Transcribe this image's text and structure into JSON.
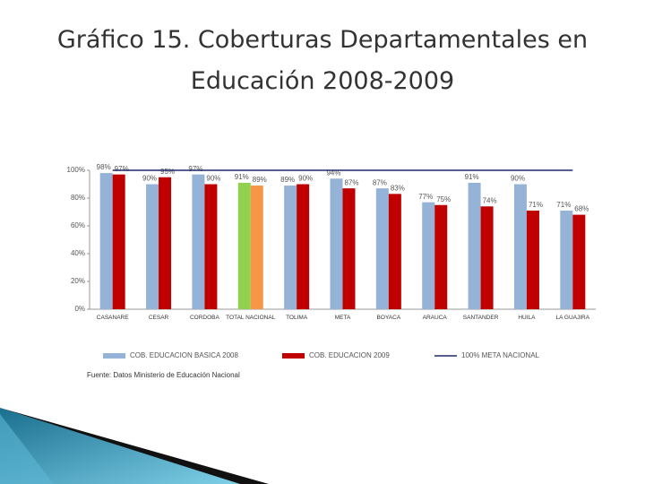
{
  "chart_data": {
    "type": "bar",
    "title": "Gráfico 15. Coberturas Departamentales en Educación 2008-2009",
    "categories": [
      "CASANARE",
      "CESAR",
      "CORDOBA",
      "TOTAL NACIONAL",
      "TOLIMA",
      "META",
      "BOYACA",
      "ARAUCA",
      "SANTANDER",
      "HUILA",
      "LA GUAJIRA"
    ],
    "series": [
      {
        "name": "COB. EDUCACION BASICA 2008",
        "color": "#95b3d7",
        "colors": [
          "#95b3d7",
          "#95b3d7",
          "#95b3d7",
          "#92d050",
          "#95b3d7",
          "#95b3d7",
          "#95b3d7",
          "#95b3d7",
          "#95b3d7",
          "#95b3d7",
          "#95b3d7"
        ],
        "values": [
          98,
          90,
          97,
          91,
          89,
          94,
          87,
          77,
          91,
          90,
          71
        ],
        "value_labels": [
          "98%",
          "90%",
          "97%",
          "91%",
          "89%",
          "94%",
          "87%",
          "77%",
          "91%",
          "90%",
          "71%"
        ]
      },
      {
        "name": "COB. EDUCACION 2009",
        "color": "#c00000",
        "colors": [
          "#c00000",
          "#c00000",
          "#c00000",
          "#f79646",
          "#c00000",
          "#c00000",
          "#c00000",
          "#c00000",
          "#c00000",
          "#c00000",
          "#c00000"
        ],
        "values": [
          97,
          95,
          90,
          89,
          90,
          87,
          83,
          75,
          74,
          71,
          68
        ],
        "value_labels": [
          "97%",
          "95%",
          "90%",
          "89%",
          "90%",
          "87%",
          "83%",
          "75%",
          "74%",
          "71%",
          "68%"
        ]
      },
      {
        "name": "100% META NACIONAL",
        "color": "#1f2a6b",
        "type": "line",
        "values": [
          100,
          100,
          100,
          100,
          100,
          100,
          100,
          100,
          100,
          100,
          100
        ]
      }
    ],
    "ylim": [
      0,
      100
    ],
    "yticks": [
      {
        "value": 0,
        "label": "0%"
      },
      {
        "value": 20,
        "label": "20%"
      },
      {
        "value": 40,
        "label": "40%"
      },
      {
        "value": 60,
        "label": "60%"
      },
      {
        "value": 80,
        "label": "80%"
      },
      {
        "value": 100,
        "label": "100%"
      }
    ],
    "legend": "bottom",
    "source": "Fuente: Datos Ministerio de Educación Nacional"
  }
}
